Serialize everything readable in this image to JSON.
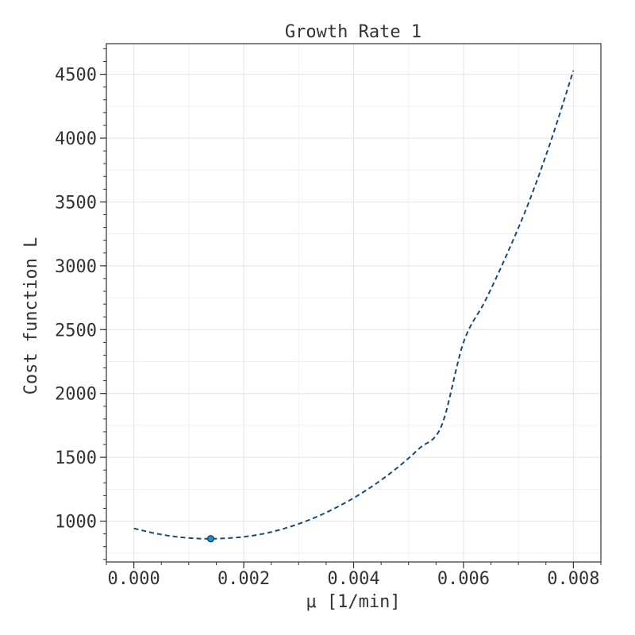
{
  "chart_data": {
    "type": "line",
    "title": "Growth Rate 1",
    "xlabel": "μ [1/min]",
    "ylabel": "Cost function L",
    "xlim": [
      -0.0005,
      0.0085
    ],
    "ylim": [
      680,
      4740
    ],
    "xticks": [
      0.0,
      0.002,
      0.004,
      0.006,
      0.008
    ],
    "xtick_labels": [
      "0.000",
      "0.002",
      "0.004",
      "0.006",
      "0.008"
    ],
    "yticks": [
      1000,
      1500,
      2000,
      2500,
      3000,
      3500,
      4000,
      4500
    ],
    "ytick_labels": [
      "1000",
      "1500",
      "2000",
      "2500",
      "3000",
      "3500",
      "4000",
      "4500"
    ],
    "grid": true,
    "series": [
      {
        "style": "dashed",
        "color": "#1a4a7a",
        "x": [
          0.0,
          0.0004,
          0.0008,
          0.0012,
          0.0014,
          0.0016,
          0.002,
          0.0024,
          0.0028,
          0.0032,
          0.0036,
          0.004,
          0.0044,
          0.0048,
          0.0052,
          0.0056,
          0.006,
          0.0064,
          0.0068,
          0.0072,
          0.0076,
          0.008
        ],
        "y": [
          943,
          903,
          876,
          863,
          862,
          864,
          877,
          905,
          950,
          1011,
          1088,
          1181,
          1291,
          1420,
          1571,
          1747,
          2400,
          2730,
          3100,
          3510,
          3990,
          4530
        ]
      }
    ],
    "markers": [
      {
        "x": 0.0014,
        "y": 862,
        "color": "#1f8fc4",
        "edge_color": "#1a3a5a"
      }
    ],
    "colors": {
      "line": "#1a4a7a",
      "marker_fill": "#1f8fc4",
      "marker_edge": "#1a3a5a",
      "grid": "#e6e6e6",
      "axis": "#333333"
    }
  }
}
